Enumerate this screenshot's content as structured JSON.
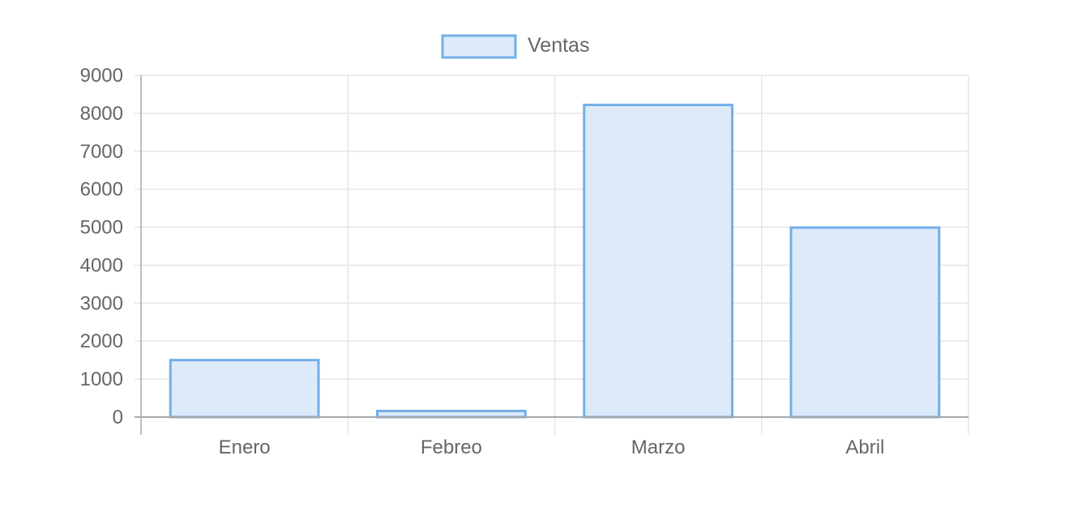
{
  "chart_data": {
    "type": "bar",
    "categories": [
      "Enero",
      "Febreo",
      "Marzo",
      "Abril"
    ],
    "series": [
      {
        "name": "Ventas",
        "values": [
          1500,
          160,
          8220,
          4990
        ]
      }
    ],
    "ylim": [
      0,
      9000
    ],
    "yticks": [
      0,
      1000,
      2000,
      3000,
      4000,
      5000,
      6000,
      7000,
      8000,
      9000
    ],
    "grid": true,
    "legend_position": "top-center",
    "colors": {
      "bar_fill": "#ddeaf9",
      "bar_border": "#74aee8",
      "grid": "#e6e6e6",
      "axis": "#a8a8a8",
      "text": "#666666"
    }
  }
}
